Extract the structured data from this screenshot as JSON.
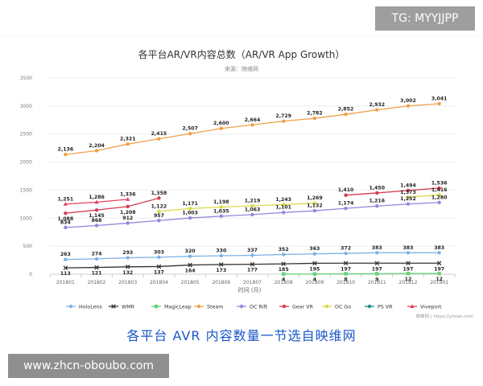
{
  "watermark_tg": "TG: MYYJJPP",
  "watermark_url": "www.zhcn-oboubo.com",
  "caption": "各平台 AVR 内容数量一节选自映维网",
  "chart_data": {
    "type": "line",
    "title": "各平台AR/VR内容总数（AR/VR App Growth）",
    "subtitle": "来源：映维网",
    "xlabel": "时间 (月)",
    "ylabel": "",
    "source_note": "映维网 | https://yivian.com",
    "ylim": [
      0,
      3500
    ],
    "yticks": [
      0,
      500,
      1000,
      1500,
      2000,
      2500,
      3000,
      3500
    ],
    "grid": "horizontal",
    "legend_position": "bottom",
    "categories": [
      "201801",
      "201802",
      "201803",
      "201804",
      "201805",
      "201806",
      "201807",
      "201808",
      "201809",
      "201810",
      "201811",
      "201812",
      "201901"
    ],
    "series": [
      {
        "name": "HoloLens",
        "color": "#7fb2e5",
        "marker": "circle",
        "values": [
          263,
          274,
          293,
          303,
          320,
          330,
          337,
          352,
          363,
          372,
          383,
          383,
          383
        ]
      },
      {
        "name": "WMR",
        "color": "#333333",
        "marker": "cross",
        "values": [
          113,
          121,
          132,
          137,
          164,
          173,
          177,
          185,
          195,
          197,
          197,
          197,
          197
        ]
      },
      {
        "name": "MagicLeap",
        "color": "#64d27a",
        "marker": "square",
        "values": [
          null,
          null,
          null,
          null,
          null,
          null,
          null,
          4,
          4,
          8,
          9,
          12,
          12
        ]
      },
      {
        "name": "Steam",
        "color": "#f0a048",
        "marker": "circle",
        "values": [
          2136,
          2204,
          2321,
          2415,
          2507,
          2600,
          2664,
          2729,
          2782,
          2852,
          2932,
          3002,
          3041
        ]
      },
      {
        "name": "OC Rift",
        "color": "#9b83db",
        "marker": "circle",
        "values": [
          834,
          868,
          912,
          957,
          1003,
          1035,
          1063,
          1101,
          1132,
          1174,
          1216,
          1252,
          1280
        ]
      },
      {
        "name": "Gear VR",
        "color": "#d63a4e",
        "marker": "circle",
        "values": [
          1088,
          1145,
          1208,
          1358,
          null,
          null,
          null,
          null,
          null,
          1410,
          1450,
          1494,
          1536
        ]
      },
      {
        "name": "OC Go",
        "color": "#d9d94a",
        "marker": "circle",
        "values": [
          null,
          null,
          null,
          1122,
          1171,
          1198,
          1219,
          1243,
          1269,
          null,
          null,
          1373,
          1416
        ]
      },
      {
        "name": "PS VR",
        "color": "#1b8a86",
        "marker": "circle",
        "values": [
          null,
          null,
          null,
          null,
          null,
          null,
          null,
          null,
          null,
          null,
          null,
          null,
          null
        ]
      },
      {
        "name": "Viveport",
        "color": "#e8405f",
        "marker": "triangle",
        "values": [
          1251,
          1286,
          1336,
          null,
          null,
          null,
          null,
          null,
          null,
          null,
          null,
          null,
          null
        ]
      }
    ]
  }
}
